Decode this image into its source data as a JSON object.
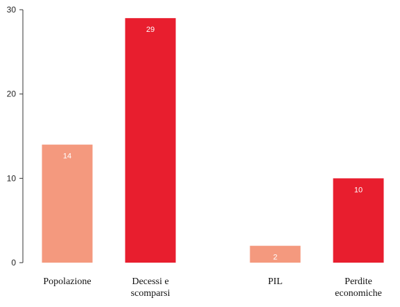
{
  "chart_data": {
    "type": "bar",
    "categories": [
      [
        "Popolazione"
      ],
      [
        "Decessi e",
        "scomparsi"
      ],
      [
        "PIL"
      ],
      [
        "Perdite",
        "economiche"
      ]
    ],
    "values": [
      14,
      29,
      2,
      10
    ],
    "data_labels": [
      "14",
      "29",
      "2",
      "10"
    ],
    "bar_colors": [
      "#F4997E",
      "#E81E2E",
      "#F4997E",
      "#E81E2E"
    ],
    "ylim": [
      0,
      30
    ],
    "yticks": [
      0,
      10,
      20,
      30
    ],
    "ytick_labels": [
      "0",
      "10",
      "20",
      "30"
    ],
    "grid": false,
    "title": "",
    "xlabel": "",
    "ylabel": ""
  }
}
